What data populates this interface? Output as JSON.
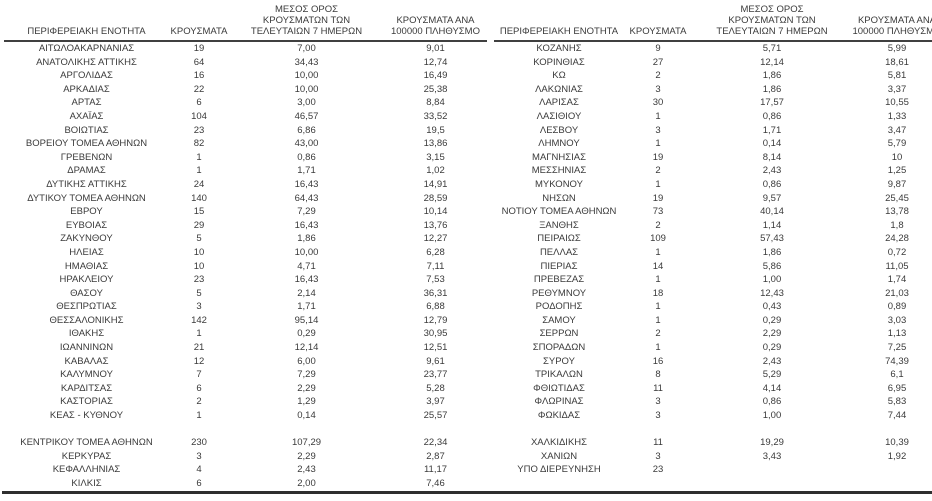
{
  "page": {
    "background": "#ffffff",
    "text_color": "#3a3a3a",
    "rule_color": "#404040"
  },
  "headers": {
    "region": "ΠΕΡΙΦΕΡΕΙΑΚΗ ΕΝΟΤΗΤΑ",
    "cases": "ΚΡΟΥΣΜΑΤΑ",
    "avg7": "ΜΕΣΟΣ ΟΡΟΣ\nΚΡΟΥΣΜΑΤΩΝ ΤΩΝ\nΤΕΛΕΥΤΑΙΩΝ 7 ΗΜΕΡΩΝ",
    "per100k": "ΚΡΟΥΣΜΑΤΑ ΑΝΑ\n100000 ΠΛΗΘΥΣΜΟ"
  },
  "left_table": {
    "rows": [
      [
        "ΑΙΤΩΛΟΑΚΑΡΝΑΝΙΑΣ",
        "19",
        "7,00",
        "9,01"
      ],
      [
        "ΑΝΑΤΟΛΙΚΗΣ ΑΤΤΙΚΗΣ",
        "64",
        "34,43",
        "12,74"
      ],
      [
        "ΑΡΓΟΛΙΔΑΣ",
        "16",
        "10,00",
        "16,49"
      ],
      [
        "ΑΡΚΑΔΙΑΣ",
        "22",
        "10,00",
        "25,38"
      ],
      [
        "ΑΡΤΑΣ",
        "6",
        "3,00",
        "8,84"
      ],
      [
        "ΑΧΑΪΑΣ",
        "104",
        "46,57",
        "33,52"
      ],
      [
        "ΒΟΙΩΤΙΑΣ",
        "23",
        "6,86",
        "19,5"
      ],
      [
        "ΒΟΡΕΙΟΥ ΤΟΜΕΑ ΑΘΗΝΩΝ",
        "82",
        "43,00",
        "13,86"
      ],
      [
        "ΓΡΕΒΕΝΩΝ",
        "1",
        "0,86",
        "3,15"
      ],
      [
        "ΔΡΑΜΑΣ",
        "1",
        "1,71",
        "1,02"
      ],
      [
        "ΔΥΤΙΚΗΣ ΑΤΤΙΚΗΣ",
        "24",
        "16,43",
        "14,91"
      ],
      [
        "ΔΥΤΙΚΟΥ ΤΟΜΕΑ ΑΘΗΝΩΝ",
        "140",
        "64,43",
        "28,59"
      ],
      [
        "ΕΒΡΟΥ",
        "15",
        "7,29",
        "10,14"
      ],
      [
        "ΕΥΒΟΙΑΣ",
        "29",
        "16,43",
        "13,76"
      ],
      [
        "ΖΑΚΥΝΘΟΥ",
        "5",
        "1,86",
        "12,27"
      ],
      [
        "ΗΛΕΙΑΣ",
        "10",
        "10,00",
        "6,28"
      ],
      [
        "ΗΜΑΘΙΑΣ",
        "10",
        "4,71",
        "7,11"
      ],
      [
        "ΗΡΑΚΛΕΙΟΥ",
        "23",
        "16,43",
        "7,53"
      ],
      [
        "ΘΑΣΟΥ",
        "5",
        "2,14",
        "36,31"
      ],
      [
        "ΘΕΣΠΡΩΤΙΑΣ",
        "3",
        "1,71",
        "6,88"
      ],
      [
        "ΘΕΣΣΑΛΟΝΙΚΗΣ",
        "142",
        "95,14",
        "12,79"
      ],
      [
        "ΙΘΑΚΗΣ",
        "1",
        "0,29",
        "30,95"
      ],
      [
        "ΙΩΑΝΝΙΝΩΝ",
        "21",
        "12,14",
        "12,51"
      ],
      [
        "ΚΑΒΑΛΑΣ",
        "12",
        "6,00",
        "9,61"
      ],
      [
        "ΚΑΛΥΜΝΟΥ",
        "7",
        "7,29",
        "23,77"
      ],
      [
        "ΚΑΡΔΙΤΣΑΣ",
        "6",
        "2,29",
        "5,28"
      ],
      [
        "ΚΑΣΤΟΡΙΑΣ",
        "2",
        "1,29",
        "3,97"
      ],
      [
        "ΚΕΑΣ - ΚΥΘΝΟΥ",
        "1",
        "0,14",
        "25,57"
      ],
      [
        "",
        "",
        "",
        ""
      ],
      [
        "ΚΕΝΤΡΙΚΟΥ ΤΟΜΕΑ ΑΘΗΝΩΝ",
        "230",
        "107,29",
        "22,34"
      ],
      [
        "ΚΕΡΚΥΡΑΣ",
        "3",
        "2,29",
        "2,87"
      ],
      [
        "ΚΕΦΑΛΛΗΝΙΑΣ",
        "4",
        "2,43",
        "11,17"
      ],
      [
        "ΚΙΛΚΙΣ",
        "6",
        "2,00",
        "7,46"
      ]
    ]
  },
  "right_table": {
    "rows": [
      [
        "ΚΟΖΑΝΗΣ",
        "9",
        "5,71",
        "5,99"
      ],
      [
        "ΚΟΡΙΝΘΙΑΣ",
        "27",
        "12,14",
        "18,61"
      ],
      [
        "ΚΩ",
        "2",
        "1,86",
        "5,81"
      ],
      [
        "ΛΑΚΩΝΙΑΣ",
        "3",
        "1,86",
        "3,37"
      ],
      [
        "ΛΑΡΙΣΑΣ",
        "30",
        "17,57",
        "10,55"
      ],
      [
        "ΛΑΣΙΘΙΟΥ",
        "1",
        "0,86",
        "1,33"
      ],
      [
        "ΛΕΣΒΟΥ",
        "3",
        "1,71",
        "3,47"
      ],
      [
        "ΛΗΜΝΟΥ",
        "1",
        "0,14",
        "5,79"
      ],
      [
        "ΜΑΓΝΗΣΙΑΣ",
        "19",
        "8,14",
        "10"
      ],
      [
        "ΜΕΣΣΗΝΙΑΣ",
        "2",
        "2,43",
        "1,25"
      ],
      [
        "ΜΥΚΟΝΟΥ",
        "1",
        "0,86",
        "9,87"
      ],
      [
        "ΝΗΣΩΝ",
        "19",
        "9,57",
        "25,45"
      ],
      [
        "ΝΟΤΙΟΥ ΤΟΜΕΑ ΑΘΗΝΩΝ",
        "73",
        "40,14",
        "13,78"
      ],
      [
        "ΞΑΝΘΗΣ",
        "2",
        "1,14",
        "1,8"
      ],
      [
        "ΠΕΙΡΑΙΩΣ",
        "109",
        "57,43",
        "24,28"
      ],
      [
        "ΠΕΛΛΑΣ",
        "1",
        "1,86",
        "0,72"
      ],
      [
        "ΠΙΕΡΙΑΣ",
        "14",
        "5,86",
        "11,05"
      ],
      [
        "ΠΡΕΒΕΖΑΣ",
        "1",
        "1,00",
        "1,74"
      ],
      [
        "ΡΕΘΥΜΝΟΥ",
        "18",
        "12,43",
        "21,03"
      ],
      [
        "ΡΟΔΟΠΗΣ",
        "1",
        "0,43",
        "0,89"
      ],
      [
        "ΣΑΜΟΥ",
        "1",
        "0,29",
        "3,03"
      ],
      [
        "ΣΕΡΡΩΝ",
        "2",
        "2,29",
        "1,13"
      ],
      [
        "ΣΠΟΡΑΔΩΝ",
        "1",
        "0,29",
        "7,25"
      ],
      [
        "ΣΥΡΟΥ",
        "16",
        "2,43",
        "74,39"
      ],
      [
        "ΤΡΙΚΑΛΩΝ",
        "8",
        "5,29",
        "6,1"
      ],
      [
        "ΦΘΙΩΤΙΔΑΣ",
        "11",
        "4,14",
        "6,95"
      ],
      [
        "ΦΛΩΡΙΝΑΣ",
        "3",
        "0,86",
        "5,83"
      ],
      [
        "ΦΩΚΙΔΑΣ",
        "3",
        "1,00",
        "7,44"
      ],
      [
        "",
        "",
        "",
        ""
      ],
      [
        "ΧΑΛΚΙΔΙΚΗΣ",
        "11",
        "19,29",
        "10,39"
      ],
      [
        "ΧΑΝΙΩΝ",
        "3",
        "3,43",
        "1,92"
      ],
      [
        "ΥΠΟ ΔΙΕΡΕΥΝΗΣΗ",
        "23",
        "",
        ""
      ],
      [
        "",
        "",
        "",
        ""
      ]
    ]
  }
}
